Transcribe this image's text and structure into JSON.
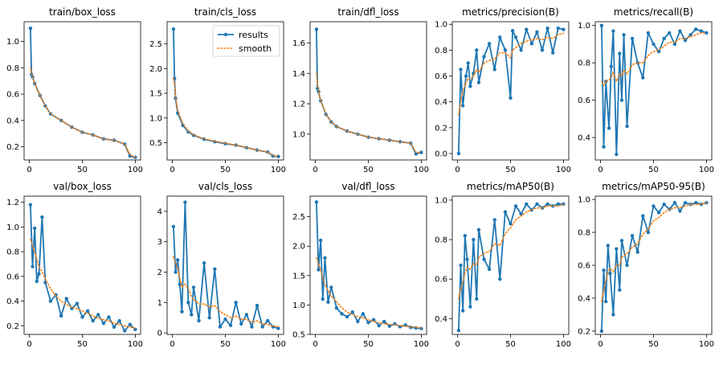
{
  "legend": {
    "items": [
      "results",
      "smooth"
    ],
    "placement": "upper-right of train/cls_loss"
  },
  "colors": {
    "results": "#1f77b4",
    "smooth": "#ff7f0e"
  },
  "chart_data": [
    {
      "type": "line",
      "title": "train/box_loss",
      "ylim": [
        0.1,
        1.15
      ],
      "yticks": [
        0.2,
        0.4,
        0.6,
        0.8,
        1.0
      ],
      "xticks": [
        0,
        50,
        100
      ],
      "xlim": [
        -5,
        105
      ],
      "x": [
        1,
        2,
        3,
        5,
        10,
        15,
        20,
        30,
        40,
        50,
        60,
        70,
        80,
        90,
        95,
        100
      ],
      "series": [
        {
          "name": "results",
          "values": [
            1.1,
            0.75,
            0.73,
            0.68,
            0.59,
            0.51,
            0.45,
            0.4,
            0.35,
            0.31,
            0.29,
            0.26,
            0.25,
            0.22,
            0.13,
            0.12
          ]
        },
        {
          "name": "smooth",
          "values": [
            0.8,
            0.76,
            0.73,
            0.68,
            0.59,
            0.51,
            0.45,
            0.4,
            0.35,
            0.31,
            0.29,
            0.26,
            0.25,
            0.22,
            0.14,
            0.12
          ]
        }
      ]
    },
    {
      "type": "line",
      "title": "train/cls_loss",
      "ylim": [
        0.15,
        2.95
      ],
      "yticks": [
        0.5,
        1.0,
        1.5,
        2.0,
        2.5
      ],
      "xticks": [
        0,
        50,
        100
      ],
      "xlim": [
        -5,
        105
      ],
      "x": [
        1,
        2,
        3,
        5,
        10,
        15,
        20,
        30,
        40,
        50,
        60,
        70,
        80,
        90,
        95,
        100
      ],
      "series": [
        {
          "name": "results",
          "values": [
            2.8,
            1.8,
            1.4,
            1.1,
            0.85,
            0.72,
            0.65,
            0.57,
            0.52,
            0.48,
            0.45,
            0.4,
            0.35,
            0.31,
            0.23,
            0.22
          ]
        },
        {
          "name": "smooth",
          "values": [
            1.8,
            1.7,
            1.45,
            1.15,
            0.88,
            0.74,
            0.66,
            0.58,
            0.53,
            0.49,
            0.45,
            0.4,
            0.35,
            0.31,
            0.24,
            0.22
          ]
        }
      ]
    },
    {
      "type": "line",
      "title": "train/dfl_loss",
      "ylim": [
        0.83,
        1.74
      ],
      "yticks": [
        1.0,
        1.2,
        1.4,
        1.6
      ],
      "xticks": [
        0,
        50,
        100
      ],
      "xlim": [
        -5,
        105
      ],
      "x": [
        1,
        2,
        3,
        5,
        10,
        15,
        20,
        30,
        40,
        50,
        60,
        70,
        80,
        90,
        95,
        100
      ],
      "series": [
        {
          "name": "results",
          "values": [
            1.69,
            1.3,
            1.28,
            1.22,
            1.13,
            1.08,
            1.05,
            1.02,
            1.0,
            0.98,
            0.97,
            0.96,
            0.95,
            0.94,
            0.87,
            0.88
          ]
        },
        {
          "name": "smooth",
          "values": [
            1.4,
            1.33,
            1.29,
            1.22,
            1.13,
            1.08,
            1.05,
            1.02,
            1.0,
            0.98,
            0.97,
            0.96,
            0.95,
            0.94,
            0.88,
            0.88
          ]
        }
      ]
    },
    {
      "type": "line",
      "title": "metrics/precision(B)",
      "ylim": [
        -0.05,
        1.02
      ],
      "yticks": [
        0.0,
        0.2,
        0.4,
        0.6,
        0.8,
        1.0
      ],
      "xticks": [
        0,
        50,
        100
      ],
      "xlim": [
        -5,
        105
      ],
      "x": [
        1,
        3,
        5,
        8,
        10,
        12,
        15,
        18,
        20,
        25,
        30,
        35,
        40,
        45,
        50,
        52,
        55,
        60,
        65,
        70,
        75,
        80,
        85,
        90,
        95,
        100
      ],
      "series": [
        {
          "name": "results",
          "values": [
            0.0,
            0.65,
            0.37,
            0.6,
            0.7,
            0.52,
            0.62,
            0.8,
            0.55,
            0.75,
            0.85,
            0.65,
            0.9,
            0.8,
            0.43,
            0.95,
            0.9,
            0.8,
            0.96,
            0.85,
            0.94,
            0.8,
            0.97,
            0.78,
            0.97,
            0.96
          ]
        },
        {
          "name": "smooth",
          "values": [
            0.3,
            0.4,
            0.48,
            0.55,
            0.58,
            0.58,
            0.6,
            0.65,
            0.63,
            0.7,
            0.72,
            0.73,
            0.78,
            0.78,
            0.74,
            0.8,
            0.82,
            0.85,
            0.87,
            0.88,
            0.89,
            0.88,
            0.9,
            0.89,
            0.92,
            0.93
          ]
        }
      ]
    },
    {
      "type": "line",
      "title": "metrics/recall(B)",
      "ylim": [
        0.28,
        1.02
      ],
      "yticks": [
        0.4,
        0.6,
        0.8,
        1.0
      ],
      "xticks": [
        0,
        50,
        100
      ],
      "xlim": [
        -5,
        105
      ],
      "x": [
        1,
        3,
        5,
        8,
        10,
        12,
        15,
        18,
        20,
        22,
        25,
        30,
        35,
        40,
        45,
        50,
        55,
        60,
        65,
        70,
        75,
        80,
        85,
        90,
        95,
        100
      ],
      "series": [
        {
          "name": "results",
          "values": [
            1.0,
            0.35,
            0.7,
            0.45,
            0.78,
            0.97,
            0.31,
            0.85,
            0.6,
            0.95,
            0.46,
            0.93,
            0.8,
            0.72,
            0.96,
            0.9,
            0.86,
            0.93,
            0.96,
            0.9,
            0.97,
            0.92,
            0.95,
            0.98,
            0.97,
            0.96
          ]
        },
        {
          "name": "smooth",
          "values": [
            0.7,
            0.68,
            0.7,
            0.71,
            0.72,
            0.75,
            0.7,
            0.74,
            0.73,
            0.76,
            0.74,
            0.79,
            0.8,
            0.8,
            0.84,
            0.86,
            0.87,
            0.89,
            0.91,
            0.91,
            0.93,
            0.93,
            0.94,
            0.95,
            0.96,
            0.96
          ]
        }
      ]
    },
    {
      "type": "line",
      "title": "val/box_loss",
      "ylim": [
        0.13,
        1.25
      ],
      "yticks": [
        0.2,
        0.4,
        0.6,
        0.8,
        1.0,
        1.2
      ],
      "xticks": [
        0,
        50,
        100
      ],
      "xlim": [
        -5,
        105
      ],
      "x": [
        1,
        3,
        5,
        7,
        9,
        12,
        15,
        20,
        25,
        30,
        35,
        40,
        45,
        50,
        55,
        60,
        65,
        70,
        75,
        80,
        85,
        90,
        95,
        100
      ],
      "series": [
        {
          "name": "results",
          "values": [
            1.18,
            0.68,
            0.99,
            0.56,
            0.62,
            1.08,
            0.55,
            0.4,
            0.45,
            0.28,
            0.42,
            0.34,
            0.38,
            0.27,
            0.32,
            0.24,
            0.29,
            0.22,
            0.27,
            0.19,
            0.24,
            0.16,
            0.21,
            0.17
          ]
        },
        {
          "name": "smooth",
          "values": [
            0.9,
            0.85,
            0.8,
            0.74,
            0.68,
            0.64,
            0.58,
            0.5,
            0.44,
            0.4,
            0.37,
            0.35,
            0.34,
            0.32,
            0.3,
            0.28,
            0.26,
            0.25,
            0.24,
            0.22,
            0.21,
            0.2,
            0.19,
            0.18
          ]
        }
      ]
    },
    {
      "type": "line",
      "title": "val/cls_loss",
      "ylim": [
        -0.05,
        4.5
      ],
      "yticks": [
        0,
        1,
        2,
        3,
        4
      ],
      "xticks": [
        0,
        50,
        100
      ],
      "xlim": [
        -5,
        105
      ],
      "x": [
        1,
        3,
        5,
        7,
        9,
        12,
        15,
        18,
        20,
        25,
        30,
        35,
        40,
        45,
        50,
        55,
        60,
        65,
        70,
        75,
        80,
        85,
        90,
        95,
        100
      ],
      "series": [
        {
          "name": "results",
          "values": [
            3.5,
            2.0,
            2.4,
            1.6,
            0.7,
            4.3,
            1.0,
            0.6,
            1.5,
            0.4,
            2.3,
            0.5,
            2.1,
            0.2,
            0.45,
            0.25,
            1.0,
            0.3,
            0.6,
            0.2,
            0.9,
            0.2,
            0.4,
            0.2,
            0.15
          ]
        },
        {
          "name": "smooth",
          "values": [
            2.5,
            2.3,
            2.1,
            1.8,
            1.5,
            1.6,
            1.45,
            1.2,
            1.1,
            0.95,
            0.95,
            0.85,
            0.9,
            0.7,
            0.6,
            0.5,
            0.55,
            0.45,
            0.45,
            0.35,
            0.4,
            0.3,
            0.28,
            0.22,
            0.2
          ]
        }
      ]
    },
    {
      "type": "line",
      "title": "val/dfl_loss",
      "ylim": [
        0.5,
        2.85
      ],
      "yticks": [
        0.5,
        1.0,
        1.5,
        2.0,
        2.5
      ],
      "xticks": [
        0,
        50,
        100
      ],
      "xlim": [
        -5,
        105
      ],
      "x": [
        1,
        3,
        5,
        7,
        9,
        12,
        15,
        20,
        25,
        30,
        35,
        40,
        45,
        50,
        55,
        60,
        65,
        70,
        75,
        80,
        85,
        90,
        95,
        100
      ],
      "series": [
        {
          "name": "results",
          "values": [
            2.75,
            1.6,
            2.1,
            1.1,
            1.8,
            1.05,
            1.3,
            0.95,
            0.85,
            0.8,
            0.88,
            0.72,
            0.85,
            0.7,
            0.75,
            0.65,
            0.72,
            0.64,
            0.68,
            0.63,
            0.66,
            0.62,
            0.61,
            0.6
          ]
        },
        {
          "name": "smooth",
          "values": [
            1.8,
            1.7,
            1.6,
            1.45,
            1.35,
            1.25,
            1.15,
            1.05,
            0.95,
            0.88,
            0.84,
            0.8,
            0.78,
            0.75,
            0.72,
            0.7,
            0.68,
            0.67,
            0.66,
            0.65,
            0.64,
            0.63,
            0.62,
            0.61
          ]
        }
      ]
    },
    {
      "type": "line",
      "title": "metrics/mAP50(B)",
      "ylim": [
        0.32,
        1.02
      ],
      "yticks": [
        0.4,
        0.6,
        0.8,
        1.0
      ],
      "xticks": [
        0,
        50,
        100
      ],
      "xlim": [
        -5,
        105
      ],
      "x": [
        1,
        3,
        5,
        7,
        9,
        12,
        15,
        18,
        20,
        25,
        30,
        35,
        40,
        45,
        50,
        55,
        60,
        65,
        70,
        75,
        80,
        85,
        90,
        95,
        100
      ],
      "series": [
        {
          "name": "results",
          "values": [
            0.34,
            0.67,
            0.44,
            0.82,
            0.7,
            0.46,
            0.8,
            0.5,
            0.85,
            0.7,
            0.65,
            0.9,
            0.6,
            0.94,
            0.88,
            0.97,
            0.93,
            0.98,
            0.95,
            0.98,
            0.96,
            0.98,
            0.97,
            0.98,
            0.98
          ]
        },
        {
          "name": "smooth",
          "values": [
            0.5,
            0.55,
            0.58,
            0.63,
            0.66,
            0.65,
            0.68,
            0.67,
            0.71,
            0.73,
            0.74,
            0.78,
            0.77,
            0.83,
            0.86,
            0.9,
            0.92,
            0.94,
            0.95,
            0.96,
            0.96,
            0.97,
            0.97,
            0.97,
            0.98
          ]
        }
      ]
    },
    {
      "type": "line",
      "title": "metrics/mAP50-95(B)",
      "ylim": [
        0.18,
        1.02
      ],
      "yticks": [
        0.2,
        0.4,
        0.6,
        0.8,
        1.0
      ],
      "xticks": [
        0,
        50,
        100
      ],
      "xlim": [
        -5,
        105
      ],
      "x": [
        1,
        3,
        5,
        7,
        9,
        12,
        15,
        18,
        20,
        25,
        30,
        35,
        40,
        45,
        50,
        55,
        60,
        65,
        70,
        75,
        80,
        85,
        90,
        95,
        100
      ],
      "series": [
        {
          "name": "results",
          "values": [
            0.2,
            0.57,
            0.38,
            0.72,
            0.55,
            0.3,
            0.7,
            0.45,
            0.75,
            0.6,
            0.78,
            0.68,
            0.9,
            0.8,
            0.96,
            0.92,
            0.97,
            0.94,
            0.98,
            0.93,
            0.98,
            0.97,
            0.98,
            0.97,
            0.98
          ]
        },
        {
          "name": "smooth",
          "values": [
            0.38,
            0.45,
            0.5,
            0.56,
            0.58,
            0.56,
            0.6,
            0.6,
            0.65,
            0.67,
            0.71,
            0.73,
            0.79,
            0.82,
            0.87,
            0.89,
            0.92,
            0.94,
            0.95,
            0.95,
            0.96,
            0.97,
            0.97,
            0.97,
            0.98
          ]
        }
      ]
    }
  ]
}
